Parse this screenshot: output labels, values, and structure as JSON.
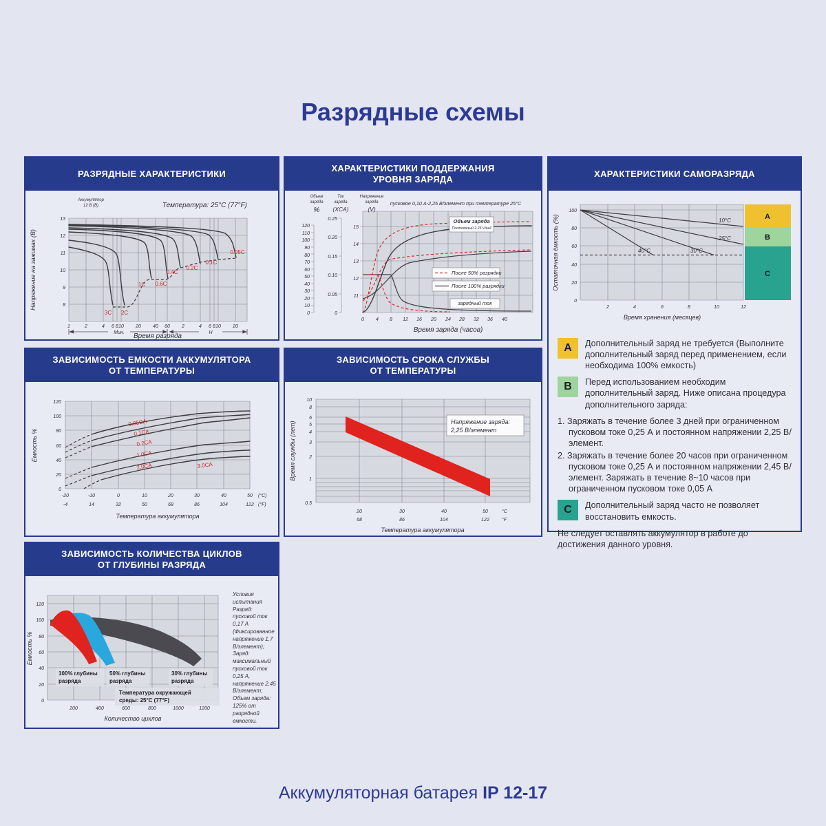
{
  "page": {
    "title": "Разрядные схемы",
    "footer": {
      "prefix": "Аккумуляторная батарея ",
      "model": "IP 12-17"
    }
  },
  "colors": {
    "navy": "#273b8c",
    "red_band": "#e0231e",
    "blue_band": "#29a8e0",
    "gray_band": "#4a4a50",
    "zone_a": "#f0c12f",
    "zone_b": "#9ed49e",
    "zone_c": "#27a390"
  },
  "discharge": {
    "title": "РАЗРЯДНЫЕ ХАРАКТЕРИСТИКИ",
    "corner1": "Аккумулятор",
    "corner2": "12 В (В)",
    "temp_note": "Температура: 25°C (77°F)",
    "ylabel": "Напряжение на зажимах (В)",
    "xlabel": "Время разряда",
    "yticks": [
      "13",
      "12",
      "11",
      "10",
      "9",
      "8"
    ],
    "xticks_min": [
      "1",
      "2",
      "4",
      "6",
      "8",
      "10",
      "20",
      "40",
      "60"
    ],
    "xticks_h": [
      "2",
      "4",
      "6",
      "8",
      "10",
      "20"
    ],
    "unit_min": "Мин.",
    "unit_h": "H",
    "c3": "3C",
    "c2": "2C",
    "c1": "1C",
    "c06": "0.6C",
    "c04": "0.4C",
    "c02": "0.2C",
    "c01": "0.1C",
    "c005": "0.05C"
  },
  "charge": {
    "title1": "ХАРАКТЕРИСТИКИ ПОДДЕРЖАНИЯ",
    "title2": "УРОВНЯ ЗАРЯДА",
    "col1a": "Объем",
    "col1b": "заряда",
    "col1u": "%",
    "col2a": "Ток",
    "col2b": "заряда",
    "col2u": "(XCA)",
    "col3a": "Напряжение",
    "col3b": "заряда",
    "col3u": "(V)",
    "subtitle": "пусковое 0,10 А-2,25 В/элемент при температуре 25°C",
    "pct_ticks": [
      "120",
      "110",
      "100",
      "90",
      "80",
      "70",
      "60",
      "50",
      "40",
      "30",
      "20",
      "10",
      "0"
    ],
    "xca_ticks": [
      "0.25",
      "0.20",
      "0.15",
      "0.10",
      "0.05",
      "0"
    ],
    "v_ticks": [
      "15",
      "14",
      "13",
      "12",
      "11"
    ],
    "xticks": [
      "0",
      "4",
      "8",
      "12",
      "16",
      "20",
      "24",
      "28",
      "32",
      "36",
      "40"
    ],
    "xlabel": "Время заряда (часов)",
    "legend_volume": "Объем заряда",
    "legend_volume_sub": "Постоянный 2.25 V/cell",
    "legend_50": "После 50% разрядки",
    "legend_100": "После 100% разрядки",
    "legend_current": "зарядный ток"
  },
  "selfdischarge": {
    "title": "ХАРАКТЕРИСТИКИ САМОРАЗРЯДА",
    "ylabel": "Остаточная ёмкость (%)",
    "xlabel": "Время хранения (месяцев)",
    "yticks": [
      "100",
      "80",
      "60",
      "40",
      "20",
      "0"
    ],
    "xticks": [
      "2",
      "4",
      "6",
      "8",
      "10",
      "12"
    ],
    "t10": "10°C",
    "t25": "25°C",
    "t30": "30°C",
    "t40": "40°C",
    "zone_a": "A",
    "zone_b": "B",
    "zone_c": "C",
    "text_a": "Дополнительный заряд не требуется (Выполните дополнительный заряд перед применением, если необходима 100% емкость)",
    "text_b": "Перед использованием необходим дополнительный заряд. Ниже описана процедура дополнительного заряда:",
    "step1": "1. Заряжать в течение более 3 дней при ограниченном пусковом токе 0,25 А и постоянном напряжении 2,25 В/элемент.",
    "step2": "2. Заряжать в течение более 20 часов при ограниченном пусковом токе 0,25 А и постоянном напряжении 2,45 В/элемент. Заряжать в течение 8~10 часов при ограниченном пусковом токе 0,05 А",
    "text_c": "Дополнительный заряд часто не позволяет восстановить емкость.",
    "note": "Не следует оставлять аккумулятор в работе до достижения данного уровня."
  },
  "capacity": {
    "title1": "ЗАВИСИМОСТЬ ЕМКОСТИ АККУМУЛЯТОРА",
    "title2": "ОТ ТЕМПЕРАТУРЫ",
    "ylabel": "Емкость %",
    "xlabel": "Температура аккумулятора",
    "yticks": [
      "120",
      "100",
      "80",
      "60",
      "40",
      "20",
      "0"
    ],
    "xticks_c": [
      "-20",
      "-10",
      "0",
      "10",
      "20",
      "30",
      "40",
      "50"
    ],
    "xticks_f": [
      "-4",
      "14",
      "32",
      "50",
      "68",
      "86",
      "104",
      "122"
    ],
    "unit_c": "(°C)",
    "unit_f": "(°F)",
    "l005": "0.05CA",
    "l01": "0.1CA",
    "l02": "0.2CA",
    "l10": "1.0CA",
    "l20": "2.0CA",
    "l30": "3.0CA"
  },
  "life": {
    "title1": "ЗАВИСИМОСТЬ СРОКА СЛУЖБЫ",
    "title2": "ОТ ТЕМПЕРАТУРЫ",
    "ylabel": "Время службы (лет)",
    "xlabel": "Температура аккумулятора",
    "yticks": [
      "10",
      "8",
      "6",
      "5",
      "4",
      "3",
      "2",
      "1",
      "0.5"
    ],
    "xticks_c": [
      "20",
      "30",
      "40",
      "50"
    ],
    "xticks_f": [
      "68",
      "86",
      "104",
      "122"
    ],
    "unit_c": "°C",
    "unit_f": "°F",
    "ann1": "Напряжение заряда:",
    "ann2": "2,25 В/элемент"
  },
  "cycles": {
    "title1": "ЗАВИСИМОСТЬ КОЛИЧЕСТВА ЦИКЛОВ",
    "title2": "ОТ ГЛУБИНЫ РАЗРЯДА",
    "ylabel": "Емкость %",
    "xlabel": "Количество циклов",
    "yticks": [
      "120",
      "100",
      "80",
      "60",
      "40",
      "20",
      "0"
    ],
    "xticks": [
      "200",
      "400",
      "600",
      "800",
      "1000",
      "1200"
    ],
    "b100a": "100% глубины",
    "b100b": "разряда",
    "b50a": "50% глубины",
    "b50b": "разряда",
    "b30a": "30% глубины",
    "b30b": "разряда",
    "temp1": "Температура окружающей",
    "temp2": "среды: 25°C (77°F)",
    "conditions": "Условия испытания Разряд: пусковой ток 0,17 А (Фиксированное напряжение 1,7 В/элемент); Заряд: максимальный пусковой ток 0,25 А, напряжение 2,45 В/элемент; Объем заряда: 125% от разрядной емкости."
  },
  "chart_data": [
    {
      "id": "discharge_characteristics",
      "type": "line",
      "title": "РАЗРЯДНЫЕ ХАРАКТЕРИСТИКИ",
      "xlabel": "Время разряда",
      "ylabel": "Напряжение на зажимах (В)",
      "x_scale": "log",
      "x_units": [
        "Мин.",
        "H"
      ],
      "ylim": [
        8,
        13
      ],
      "condition": "Температура: 25°C (77°F)",
      "battery": "Аккумулятор 12 В (В)",
      "series": [
        {
          "name": "3C",
          "start_v": 11.3,
          "end": {
            "time": "6 мин",
            "v": 8.0
          }
        },
        {
          "name": "2C",
          "start_v": 11.7,
          "end": {
            "time": "13 мин",
            "v": 8.0
          }
        },
        {
          "name": "1C",
          "start_v": 12.2,
          "end": {
            "time": "35 мин",
            "v": 9.5
          }
        },
        {
          "name": "0.6C",
          "start_v": 12.35,
          "end": {
            "time": "60 мин",
            "v": 9.5
          }
        },
        {
          "name": "0.4C",
          "start_v": 12.45,
          "end": {
            "time": "1.7 ч",
            "v": 10.2
          }
        },
        {
          "name": "0.2C",
          "start_v": 12.55,
          "end": {
            "time": "4 ч",
            "v": 10.3
          }
        },
        {
          "name": "0.1C",
          "start_v": 12.6,
          "end": {
            "time": "10 ч",
            "v": 10.6
          }
        },
        {
          "name": "0.05C",
          "start_v": 12.65,
          "end": {
            "time": "20 ч",
            "v": 10.7
          }
        }
      ]
    },
    {
      "id": "charge_level_retention",
      "type": "line",
      "title": "ХАРАКТЕРИСТИКИ ПОДДЕРЖАНИЯ УРОВНЯ ЗАРЯДА",
      "xlabel": "Время заряда (часов)",
      "xlim": [
        0,
        40
      ],
      "axes": {
        "volume_pct": [
          0,
          120
        ],
        "current_xca": [
          0,
          0.25
        ],
        "voltage_v": [
          11,
          15
        ]
      },
      "condition": "пусковое 0,10 А-2,25 В/элемент при температуре 25°C",
      "series": [
        {
          "name": "Объем заряда, после 100% разрядки",
          "final_pct": 115,
          "reaches_100pct_h": 12
        },
        {
          "name": "Объем заряда, после 50% разрядки",
          "final_pct": 110,
          "reaches_100pct_h": 6
        },
        {
          "name": "Напряжение заряда",
          "start_v": 11.2,
          "plateau_v": 13.5
        },
        {
          "name": "Зарядный ток",
          "initial_xca": 0.1,
          "final_xca": 0.01,
          "constant_until_h_100pct": 8,
          "constant_until_h_50pct": 4
        }
      ]
    },
    {
      "id": "self_discharge",
      "type": "line",
      "title": "ХАРАКТЕРИСТИКИ САМОРАЗРЯДА",
      "xlabel": "Время хранения (месяцев)",
      "ylabel": "Остаточная ёмкость (%)",
      "xlim": [
        0,
        12
      ],
      "ylim": [
        0,
        100
      ],
      "series": [
        {
          "name": "10°C",
          "points": [
            [
              0,
              100
            ],
            [
              12,
              82
            ]
          ]
        },
        {
          "name": "25°C",
          "points": [
            [
              0,
              100
            ],
            [
              12,
              62
            ]
          ]
        },
        {
          "name": "30°C",
          "points": [
            [
              0,
              100
            ],
            [
              7.5,
              50
            ]
          ]
        },
        {
          "name": "40°C",
          "points": [
            [
              0,
              100
            ],
            [
              3.2,
              50
            ]
          ]
        }
      ],
      "zones": [
        {
          "label": "A",
          "range_pct": [
            80,
            100
          ],
          "meaning": "Дополнительный заряд не требуется"
        },
        {
          "label": "B",
          "range_pct": [
            60,
            80
          ],
          "meaning": "Перед использованием необходим дополнительный заряд"
        },
        {
          "label": "C",
          "range_pct": [
            0,
            60
          ],
          "meaning": "Дополнительный заряд часто не позволяет восстановить емкость"
        }
      ]
    },
    {
      "id": "capacity_vs_temperature",
      "type": "line",
      "title": "ЗАВИСИМОСТЬ ЕМКОСТИ АККУМУЛЯТОРА ОТ ТЕМПЕРАТУРЫ",
      "xlabel": "Температура аккумулятора (°C)",
      "ylabel": "Емкость %",
      "x": [
        -20,
        0,
        25,
        50
      ],
      "ylim": [
        0,
        120
      ],
      "series": [
        {
          "name": "0.05CA",
          "values": [
            57,
            85,
            100,
            107
          ]
        },
        {
          "name": "0.1CA",
          "values": [
            50,
            80,
            96,
            102
          ]
        },
        {
          "name": "0.2CA",
          "values": [
            42,
            72,
            90,
            97
          ]
        },
        {
          "name": "1.0CA",
          "values": [
            14,
            38,
            55,
            65
          ]
        },
        {
          "name": "2.0CA",
          "values": [
            4,
            27,
            43,
            53
          ]
        },
        {
          "name": "3.0CA",
          "values": [
            0,
            19,
            34,
            44
          ]
        }
      ]
    },
    {
      "id": "service_life_vs_temperature",
      "type": "area",
      "title": "ЗАВИСИМОСТЬ СРОКА СЛУЖБЫ ОТ ТЕМПЕРАТУРЫ",
      "xlabel": "Температура аккумулятора (°C)",
      "ylabel": "Время службы (лет)",
      "y_scale": "log",
      "ylim": [
        0.5,
        10
      ],
      "condition": "Напряжение заряда: 2,25 В/элемент",
      "band": [
        {
          "temp_c": 20,
          "years": [
            3.8,
            6.0
          ]
        },
        {
          "temp_c": 50,
          "years": [
            0.65,
            1.0
          ]
        }
      ]
    },
    {
      "id": "cycles_vs_depth_of_discharge",
      "type": "area",
      "title": "ЗАВИСИМОСТЬ КОЛИЧЕСТВА ЦИКЛОВ ОТ ГЛУБИНЫ РАЗРЯДА",
      "xlabel": "Количество циклов",
      "ylabel": "Емкость %",
      "xlim": [
        0,
        1300
      ],
      "ylim": [
        0,
        120
      ],
      "condition": "Температура окружающей среды: 25°C (77°F)",
      "series": [
        {
          "name": "100% глубины разряда",
          "cycles_to_60pct": 230
        },
        {
          "name": "50% глубины разряда",
          "cycles_to_60pct": 500
        },
        {
          "name": "30% глубины разряда",
          "cycles_to_60pct": 1150
        }
      ]
    }
  ]
}
